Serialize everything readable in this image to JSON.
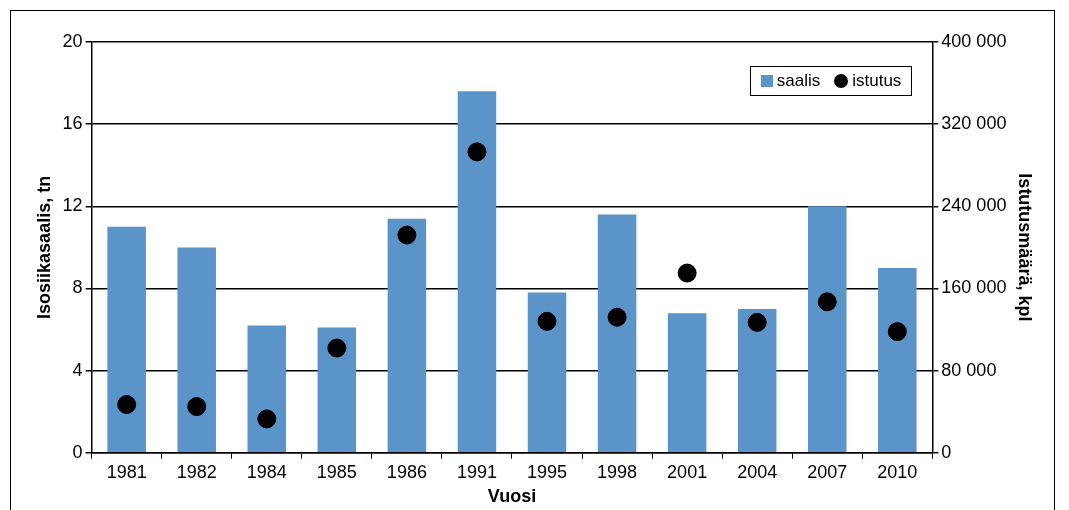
{
  "chart_data": {
    "type": "bar",
    "xlabel": "Vuosi",
    "ylabel": "Isosiikasaalis, tn",
    "y2label": "Istutusmäärä, kpl",
    "categories": [
      "1981",
      "1982",
      "1984",
      "1985",
      "1986",
      "1991",
      "1995",
      "1998",
      "2001",
      "2004",
      "2007",
      "2010"
    ],
    "series": [
      {
        "name": "saalis",
        "color": "#5b94c8",
        "values": [
          11,
          10,
          6.2,
          6.1,
          11.4,
          17.6,
          7.8,
          11.6,
          6.8,
          7,
          12,
          9
        ]
      },
      {
        "name": "istutus",
        "type": "scatter",
        "axis": "y2",
        "color": "#000000",
        "values": [
          47000,
          45000,
          33000,
          102000,
          212000,
          293000,
          128000,
          132000,
          175000,
          127000,
          147000,
          118000
        ]
      }
    ],
    "ylim": [
      0,
      20
    ],
    "yticks": [
      0,
      4,
      8,
      12,
      16,
      20
    ],
    "y2lim": [
      0,
      400000
    ],
    "y2ticks": [
      0,
      {
        "value": 80000,
        "label": "80 000"
      },
      {
        "value": 160000,
        "label": "160 000"
      },
      {
        "value": 240000,
        "label": "240 000"
      },
      {
        "value": 320000,
        "label": "320 000"
      },
      {
        "value": 400000,
        "label": "400 000"
      }
    ],
    "grid": "y",
    "legend": "top right",
    "marker": "circle"
  }
}
